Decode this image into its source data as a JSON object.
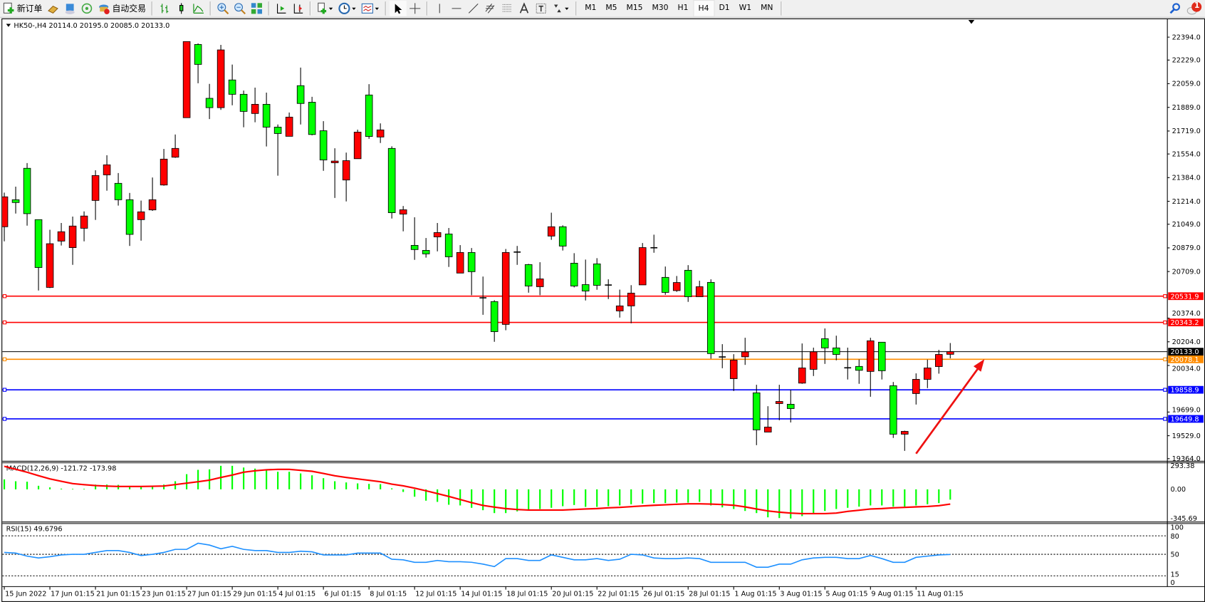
{
  "toolbar": {
    "new_order": "新订单",
    "auto_trading": "自动交易",
    "timeframes": [
      "M1",
      "M5",
      "M15",
      "M30",
      "H1",
      "H4",
      "D1",
      "W1",
      "MN"
    ],
    "active_timeframe": "H4",
    "notification_count": "1"
  },
  "chart": {
    "header": "HK50-,H4  20114.0 20195.0 20085.0 20133.0",
    "symbol": "HK50-",
    "period": "H4",
    "colors": {
      "bull": "#ff0000",
      "bear": "#00ff00",
      "outline": "#000000",
      "macd_hist": "#00ff00",
      "macd_signal": "#ff0000",
      "rsi": "#1e90ff"
    },
    "price_axis": [
      "22394.0",
      "22229.0",
      "22059.0",
      "21889.0",
      "21719.0",
      "21554.0",
      "21384.0",
      "21214.0",
      "21049.0",
      "20879.0",
      "20709.0",
      "20374.0",
      "20204.0",
      "20034.0",
      "19699.0",
      "19529.0",
      "19364.0"
    ],
    "horizontal_lines": [
      {
        "price": "20531.9",
        "color": "#ff0000"
      },
      {
        "price": "20343.2",
        "color": "#ff0000"
      },
      {
        "price": "20078.1",
        "color": "#ff8c00"
      },
      {
        "price": "19858.9",
        "color": "#0000ff"
      },
      {
        "price": "19649.8",
        "color": "#0000ff"
      }
    ],
    "current_price": "20133.0",
    "time_axis": [
      "15 Jun 2022",
      "17 Jun 01:15",
      "21 Jun 01:15",
      "23 Jun 01:15",
      "27 Jun 01:15",
      "29 Jun 01:15",
      "4 Jul 01:15",
      "6 Jul 01:15",
      "8 Jul 01:15",
      "12 Jul 01:15",
      "14 Jul 01:15",
      "18 Jul 01:15",
      "20 Jul 01:15",
      "22 Jul 01:15",
      "26 Jul 01:15",
      "28 Jul 01:15",
      "1 Aug 01:15",
      "3 Aug 01:15",
      "5 Aug 01:15",
      "9 Aug 01:15",
      "11 Aug 01:15"
    ],
    "annotation": {
      "type": "arrow",
      "color": "#ee1111",
      "from_price": 19400,
      "from_candle": 80,
      "to_price": 20080,
      "to_candle": 86
    }
  },
  "chart_data": {
    "type": "candlestick",
    "columns": [
      "open",
      "high",
      "low",
      "close"
    ],
    "candles": [
      [
        21031,
        21276,
        20926,
        21246
      ],
      [
        21225,
        21319,
        21126,
        21205
      ],
      [
        21451,
        21489,
        21039,
        21125
      ],
      [
        21082,
        21082,
        20573,
        20738
      ],
      [
        20595,
        21009,
        20590,
        20909
      ],
      [
        20928,
        21058,
        20896,
        20995
      ],
      [
        20881,
        21104,
        20757,
        21036
      ],
      [
        21020,
        21141,
        20926,
        21108
      ],
      [
        21220,
        21437,
        21080,
        21399
      ],
      [
        21404,
        21545,
        21290,
        21476
      ],
      [
        21343,
        21417,
        21183,
        21225
      ],
      [
        21225,
        21274,
        20893,
        20976
      ],
      [
        21082,
        21219,
        20931,
        21138
      ],
      [
        21152,
        21385,
        21145,
        21225
      ],
      [
        21331,
        21590,
        21326,
        21517
      ],
      [
        21531,
        21694,
        21526,
        21594
      ],
      [
        21815,
        22362,
        21815,
        22362
      ],
      [
        22341,
        22349,
        22062,
        22198
      ],
      [
        21954,
        22058,
        21805,
        21887
      ],
      [
        21887,
        22338,
        21871,
        22302
      ],
      [
        22086,
        22197,
        21904,
        21983
      ],
      [
        21983,
        22010,
        21746,
        21860
      ],
      [
        21845,
        22031,
        21782,
        21911
      ],
      [
        21911,
        21995,
        21608,
        21747
      ],
      [
        21747,
        21766,
        21398,
        21701
      ],
      [
        21681,
        21852,
        21681,
        21819
      ],
      [
        22045,
        22175,
        21766,
        21917
      ],
      [
        21926,
        21965,
        21688,
        21694
      ],
      [
        21721,
        21790,
        21433,
        21511
      ],
      [
        21491,
        21595,
        21238,
        21503
      ],
      [
        21367,
        21564,
        21213,
        21506
      ],
      [
        21520,
        21729,
        21520,
        21711
      ],
      [
        21978,
        22056,
        21663,
        21680
      ],
      [
        21676,
        21774,
        21633,
        21727
      ],
      [
        21594,
        21609,
        21090,
        21132
      ],
      [
        21122,
        21180,
        20998,
        21153
      ],
      [
        20897,
        21099,
        20793,
        20867
      ],
      [
        20861,
        20950,
        20809,
        20836
      ],
      [
        20958,
        21058,
        20854,
        20989
      ],
      [
        20979,
        21022,
        20742,
        20815
      ],
      [
        20698,
        20899,
        20698,
        20846
      ],
      [
        20846,
        20878,
        20539,
        20708
      ],
      [
        20520,
        20673,
        20398,
        20517
      ],
      [
        20493,
        20503,
        20204,
        20277
      ],
      [
        20329,
        20871,
        20287,
        20846
      ],
      [
        20849,
        20893,
        20757,
        20846
      ],
      [
        20759,
        20764,
        20557,
        20605
      ],
      [
        20600,
        20776,
        20539,
        20656
      ],
      [
        20964,
        21132,
        20937,
        21031
      ],
      [
        21031,
        21041,
        20860,
        20892
      ],
      [
        20769,
        20841,
        20595,
        20605
      ],
      [
        20615,
        20795,
        20501,
        20569
      ],
      [
        20764,
        20805,
        20578,
        20610
      ],
      [
        20612,
        20653,
        20511,
        20607
      ],
      [
        20426,
        20579,
        20378,
        20462
      ],
      [
        20462,
        20611,
        20337,
        20554
      ],
      [
        20613,
        20914,
        20613,
        20881
      ],
      [
        20878,
        20974,
        20844,
        20880
      ],
      [
        20667,
        20745,
        20542,
        20559
      ],
      [
        20572,
        20677,
        20563,
        20630
      ],
      [
        20718,
        20755,
        20491,
        20528
      ],
      [
        20528,
        20643,
        20528,
        20600
      ],
      [
        20631,
        20653,
        20083,
        20119
      ],
      [
        20095,
        20187,
        20014,
        20093
      ],
      [
        19939,
        20115,
        19850,
        20072
      ],
      [
        20096,
        20233,
        20038,
        20131
      ],
      [
        19837,
        19895,
        19461,
        19571
      ],
      [
        19555,
        19741,
        19555,
        19591
      ],
      [
        19760,
        19895,
        19640,
        19775
      ],
      [
        19755,
        19859,
        19624,
        19724
      ],
      [
        19907,
        20192,
        19902,
        20016
      ],
      [
        20006,
        20162,
        19958,
        20132
      ],
      [
        20226,
        20300,
        20045,
        20160
      ],
      [
        20160,
        20248,
        20071,
        20113
      ],
      [
        20017,
        20162,
        19933,
        20014
      ],
      [
        20027,
        20077,
        19902,
        19999
      ],
      [
        19991,
        20233,
        19809,
        20211
      ],
      [
        20201,
        20201,
        19933,
        19996
      ],
      [
        19888,
        19915,
        19513,
        19540
      ],
      [
        19540,
        19565,
        19420,
        19560
      ],
      [
        19832,
        19977,
        19753,
        19934
      ],
      [
        19934,
        20076,
        19871,
        20016
      ],
      [
        20026,
        20146,
        19975,
        20113
      ],
      [
        20114,
        20195,
        20085,
        20133
      ]
    ],
    "ylim": [
      19364,
      22394
    ],
    "indicators": {
      "macd": {
        "label": "MACD(12,26,9) -121.72 -173.98",
        "axis": [
          "293.38",
          "0.00",
          "-345.69"
        ],
        "main": [
          124,
          101,
          95,
          44,
          24,
          9,
          6,
          6,
          59,
          59,
          56,
          30,
          30,
          30,
          59,
          101,
          189,
          243,
          249,
          293,
          293,
          272,
          258,
          237,
          219,
          219,
          198,
          175,
          139,
          101,
          86,
          74,
          68,
          65,
          12,
          -31,
          -87,
          -134,
          -148,
          -182,
          -190,
          -218,
          -246,
          -280,
          -280,
          -260,
          -241,
          -232,
          -218,
          -199,
          -185,
          -207,
          -207,
          -199,
          -190,
          -176,
          -168,
          -162,
          -162,
          -157,
          -157,
          -148,
          -190,
          -213,
          -232,
          -255,
          -280,
          -330,
          -339,
          -344,
          -316,
          -288,
          -255,
          -232,
          -218,
          -204,
          -190,
          -190,
          -204,
          -204,
          -190,
          -176,
          -162,
          -121.72
        ],
        "signal": [
          287,
          250,
          213,
          170,
          130,
          100,
          71,
          58,
          47,
          40,
          36,
          36,
          36,
          38,
          41,
          59,
          77,
          95,
          115,
          148,
          178,
          213,
          231,
          243,
          249,
          249,
          237,
          225,
          198,
          169,
          148,
          130,
          112,
          95,
          65,
          44,
          15,
          -17,
          -50,
          -84,
          -120,
          -157,
          -190,
          -210,
          -227,
          -238,
          -244,
          -244,
          -244,
          -244,
          -238,
          -232,
          -227,
          -218,
          -213,
          -204,
          -196,
          -188,
          -182,
          -176,
          -171,
          -171,
          -174,
          -179,
          -188,
          -207,
          -232,
          -255,
          -269,
          -280,
          -286,
          -286,
          -286,
          -280,
          -260,
          -246,
          -232,
          -227,
          -218,
          -213,
          -207,
          -202,
          -193,
          -173.98
        ]
      },
      "rsi": {
        "label": "RSI(15) 49.6796",
        "axis": [
          "100",
          "80",
          "50",
          "15",
          "0"
        ],
        "levels": [
          80,
          50,
          15
        ],
        "values": [
          53,
          52,
          47,
          44,
          46,
          49,
          50,
          50,
          53,
          56,
          56,
          53,
          48,
          50,
          53,
          58,
          58,
          68,
          65,
          59,
          63,
          58,
          56,
          56,
          53,
          53,
          55,
          54,
          49,
          49,
          49,
          52,
          52,
          52,
          42,
          41,
          37,
          37,
          40,
          38,
          38,
          37,
          34,
          30,
          43,
          43,
          40,
          40,
          49,
          45,
          41,
          41,
          43,
          40,
          42,
          50,
          49,
          44,
          43,
          43,
          44,
          43,
          37,
          37,
          37,
          37,
          29,
          29,
          34,
          34,
          41,
          44,
          45,
          45,
          43,
          43,
          48,
          43,
          37,
          37,
          45,
          47,
          49,
          49.68
        ]
      }
    }
  }
}
